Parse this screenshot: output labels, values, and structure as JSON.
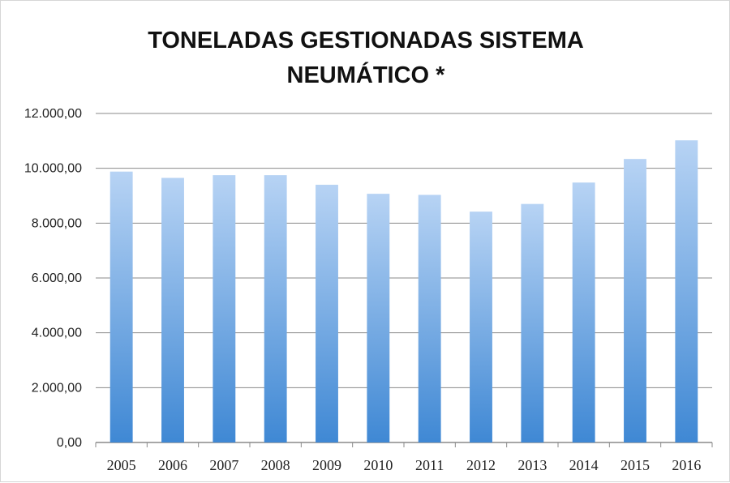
{
  "chart_data": {
    "type": "bar",
    "title_lines": [
      "TONELADAS GESTIONADAS SISTEMA",
      "NEUMÁTICO *"
    ],
    "xlabel": "",
    "ylabel": "",
    "categories": [
      "2005",
      "2006",
      "2007",
      "2008",
      "2009",
      "2010",
      "2011",
      "2012",
      "2013",
      "2014",
      "2015",
      "2016"
    ],
    "values": [
      9880,
      9650,
      9750,
      9750,
      9400,
      9070,
      9030,
      8420,
      8700,
      9480,
      10340,
      11020
    ],
    "ylim": [
      0,
      12000
    ],
    "yticks": [
      0,
      2000,
      4000,
      6000,
      8000,
      10000,
      12000
    ],
    "ytick_labels": [
      "0,00",
      "2.000,00",
      "4.000,00",
      "6.000,00",
      "8.000,00",
      "10.000,00",
      "12.000,00"
    ],
    "grid": true,
    "legend": "none",
    "colors": {
      "bar_top": "#b7d3f4",
      "bar_bottom": "#3f88d4",
      "grid": "#8a8a8a"
    }
  }
}
